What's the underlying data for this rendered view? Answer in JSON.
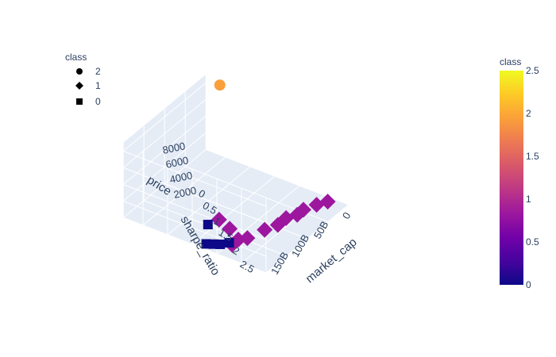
{
  "chart_data": {
    "type": "scatter3d",
    "axes": {
      "x": {
        "title": "market_cap",
        "ticks": [
          "0",
          "50B",
          "100B",
          "150B"
        ]
      },
      "y": {
        "title": "sharpe_ratio",
        "ticks": [
          "0.5",
          "1",
          "1.5",
          "2",
          "2.5"
        ]
      },
      "z": {
        "title": "price",
        "ticks": [
          "2000",
          "4000",
          "6000",
          "8000"
        ],
        "extra_zero_label": "0"
      }
    },
    "legend": {
      "title": "class",
      "placement": "top-left",
      "items": [
        {
          "label": "2",
          "symbol": "circle"
        },
        {
          "label": "1",
          "symbol": "diamond"
        },
        {
          "label": "0",
          "symbol": "square"
        }
      ]
    },
    "colorbar": {
      "title": "class",
      "range": [
        0,
        2.5
      ],
      "ticks": [
        "2.5",
        "2",
        "1.5",
        "1",
        "0.5",
        "0"
      ],
      "colors": [
        "#0d0887",
        "#46039f",
        "#7201a8",
        "#9c179e",
        "#bd3786",
        "#d8576b",
        "#ed7953",
        "#fb9f3a",
        "#fdca26",
        "#f0f921"
      ]
    },
    "series": [
      {
        "class": 2,
        "symbol": "circle",
        "color": "#fb9f3a",
        "points": [
          {
            "market_cap": 2000000000.0,
            "sharpe_ratio": 2.6,
            "price": 8500
          }
        ]
      },
      {
        "class": 1,
        "symbol": "diamond",
        "color": "#9c179e",
        "points": [
          {
            "market_cap": 15000000000.0,
            "sharpe_ratio": 0.3,
            "price": 300
          },
          {
            "market_cap": 30000000000.0,
            "sharpe_ratio": 0.4,
            "price": 300
          },
          {
            "market_cap": 50000000000.0,
            "sharpe_ratio": 0.5,
            "price": 300
          },
          {
            "market_cap": 65000000000.0,
            "sharpe_ratio": 0.5,
            "price": 300
          },
          {
            "market_cap": 80000000000.0,
            "sharpe_ratio": 0.6,
            "price": 300
          },
          {
            "market_cap": 100000000000.0,
            "sharpe_ratio": 0.6,
            "price": 300
          },
          {
            "market_cap": 120000000000.0,
            "sharpe_ratio": 0.7,
            "price": 300
          },
          {
            "market_cap": 150000000000.0,
            "sharpe_ratio": 0.8,
            "price": 300
          },
          {
            "market_cap": 160000000000.0,
            "sharpe_ratio": 0.9,
            "price": 300
          },
          {
            "market_cap": 175000000000.0,
            "sharpe_ratio": 0.9,
            "price": 300
          },
          {
            "market_cap": 145000000000.0,
            "sharpe_ratio": 1.2,
            "price": 300
          },
          {
            "market_cap": 135000000000.0,
            "sharpe_ratio": 1.5,
            "price": 300
          }
        ]
      },
      {
        "class": 0,
        "symbol": "square",
        "color": "#0d0887",
        "points": [
          {
            "market_cap": 170000000000.0,
            "sharpe_ratio": 1.0,
            "price": 100
          },
          {
            "market_cap": 180000000000.0,
            "sharpe_ratio": 1.1,
            "price": 100
          },
          {
            "market_cap": 185000000000.0,
            "sharpe_ratio": 1.2,
            "price": 100
          },
          {
            "market_cap": 190000000000.0,
            "sharpe_ratio": 1.3,
            "price": 100
          },
          {
            "market_cap": 150000000000.0,
            "sharpe_ratio": 1.6,
            "price": 100
          }
        ]
      }
    ]
  }
}
